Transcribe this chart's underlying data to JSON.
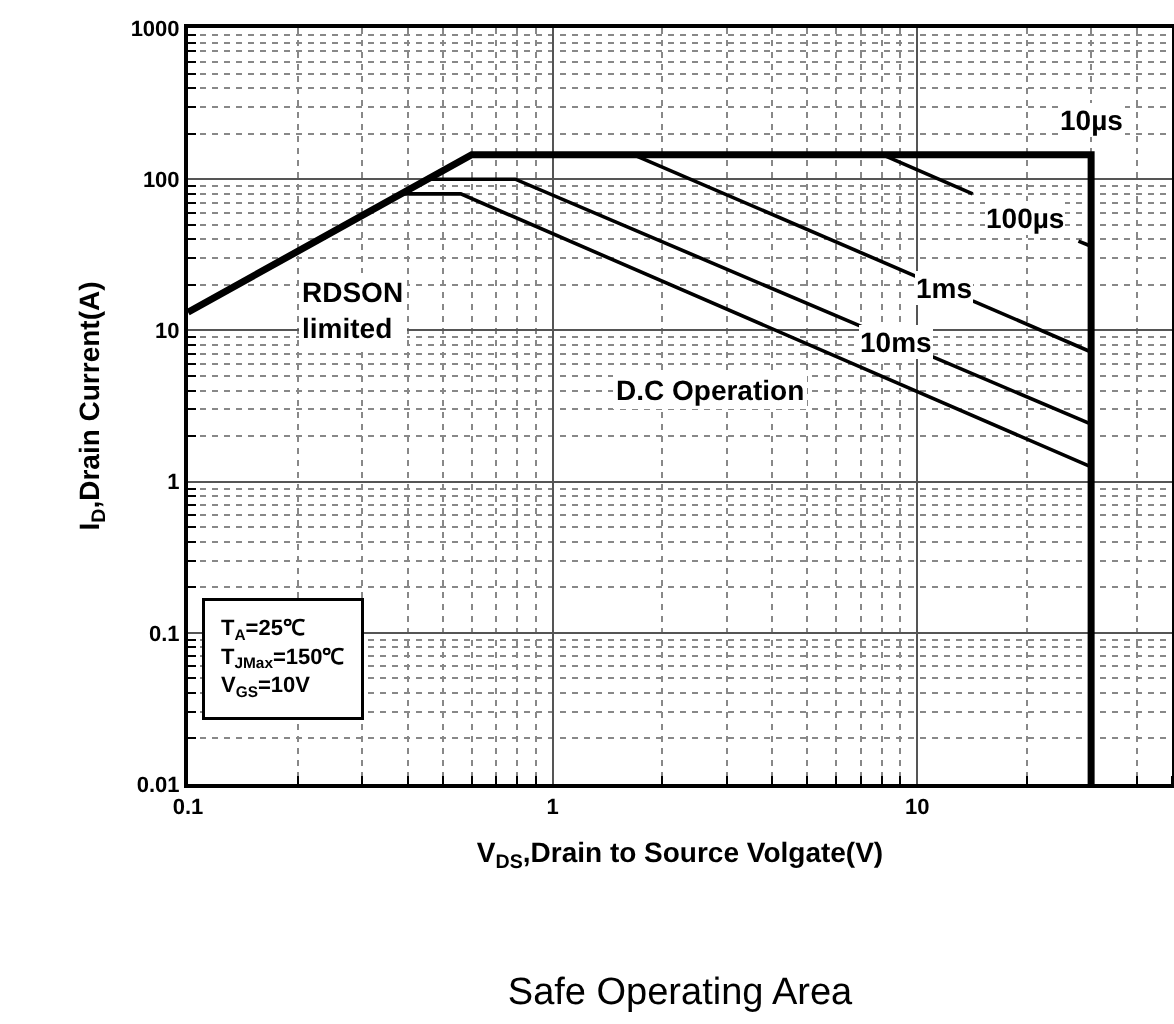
{
  "chart_data": {
    "type": "line",
    "title": "Safe Operating Area",
    "xlabel": "V$_{DS}$,Drain to Source Volgate(V)",
    "ylabel": "I$_{D}$,Drain Current(A)",
    "log": "xy",
    "grid": true,
    "marker": "none",
    "line_style": "solid",
    "xlim": [
      0.1,
      50
    ],
    "xticks": [
      0.1,
      1,
      10
    ],
    "ylim": [
      0.01,
      1000
    ],
    "yticks": [
      0.01,
      0.1,
      1,
      10,
      100,
      1000
    ],
    "series": [
      {
        "color": "#000000",
        "x": [
          0.1,
          0.6,
          30,
          30
        ],
        "values": [
          13.2,
          145,
          145,
          0.01
        ]
      },
      {
        "color": "#000000",
        "x": [
          8.05,
          14.2,
          null,
          27.7,
          30
        ],
        "values": [
          145,
          80,
          null,
          39,
          36
        ]
      },
      {
        "color": "#000000",
        "x": [
          1.67,
          10,
          null,
          14.2,
          30
        ],
        "values": [
          145,
          22.6,
          null,
          15.7,
          7.2
        ]
      },
      {
        "color": "#000000",
        "x": [
          0.46,
          0.79,
          7.1,
          null,
          11,
          30
        ],
        "values": [
          100,
          100,
          10.5,
          null,
          6.7,
          2.4
        ]
      },
      {
        "color": "#000000",
        "x": [
          0.39,
          0.56,
          30
        ],
        "values": [
          80,
          80,
          1.25
        ]
      }
    ],
    "annotations": [
      {
        "text": "10µs",
        "x": 30,
        "y": 145
      },
      {
        "text": "100µs",
        "x": 19.8,
        "y": 56
      },
      {
        "text": "1ms",
        "x": 11.9,
        "y": 19
      },
      {
        "text": "10ms",
        "x": 8.8,
        "y": 8.3
      },
      "D.C Operation",
      "RDSON\nlimited",
      "T$_{A}$=25℃",
      "T$_{JMax}$=150℃",
      "V$_{GS}$=10V"
    ]
  }
}
